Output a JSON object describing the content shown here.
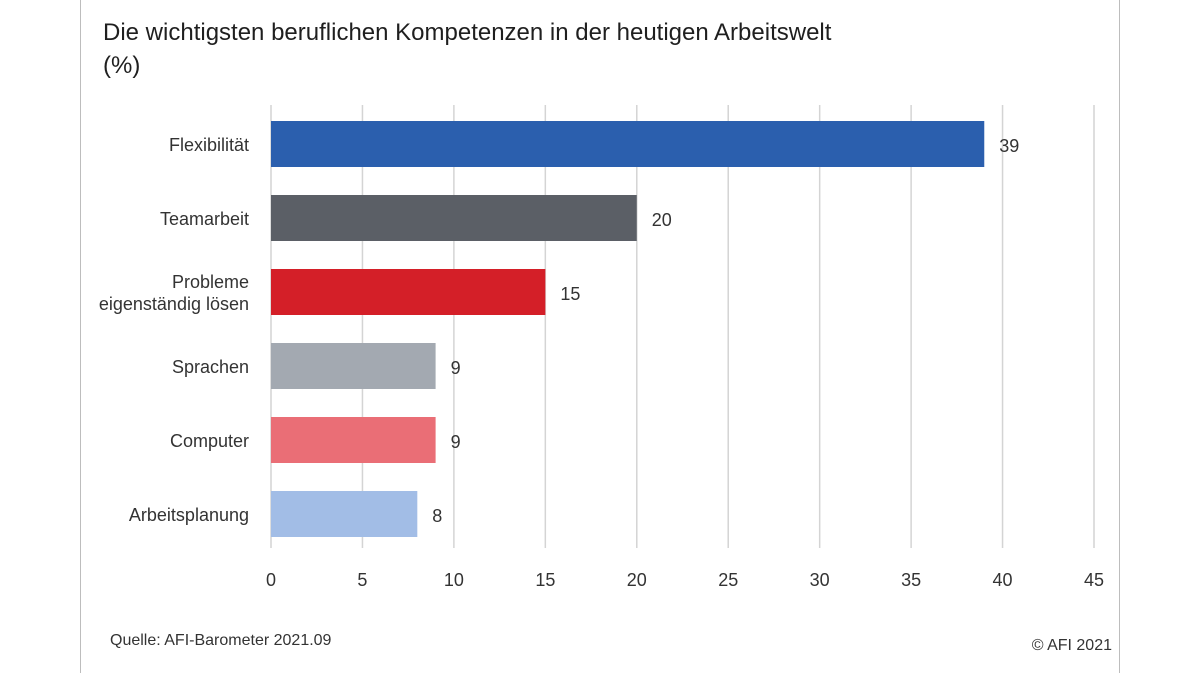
{
  "header": {
    "title_line1": "Die wichtigsten beruflichen Kompetenzen in der heutigen Arbeitswelt",
    "title_line2": "(%)"
  },
  "footer": {
    "source": "Quelle: AFI-Barometer 2021.09",
    "copyright": "© AFI 2021"
  },
  "chart_data": {
    "type": "bar",
    "orientation": "horizontal",
    "title": "Die wichtigsten beruflichen Kompetenzen in der heutigen Arbeitswelt (%)",
    "categories": [
      [
        "Flexibilität"
      ],
      [
        "Teamarbeit"
      ],
      [
        "Probleme",
        "eigenständig lösen"
      ],
      [
        "Sprachen"
      ],
      [
        "Computer"
      ],
      [
        "Arbeitsplanung"
      ]
    ],
    "values": [
      39,
      20,
      15,
      9,
      9,
      8
    ],
    "colors": [
      "#2b5fae",
      "#5b5f66",
      "#d41f28",
      "#a3a9b1",
      "#ea6e76",
      "#a2bde6"
    ],
    "xlim": [
      0,
      45
    ],
    "xticks": [
      0,
      5,
      10,
      15,
      20,
      25,
      30,
      35,
      40,
      45
    ],
    "grid": true
  }
}
